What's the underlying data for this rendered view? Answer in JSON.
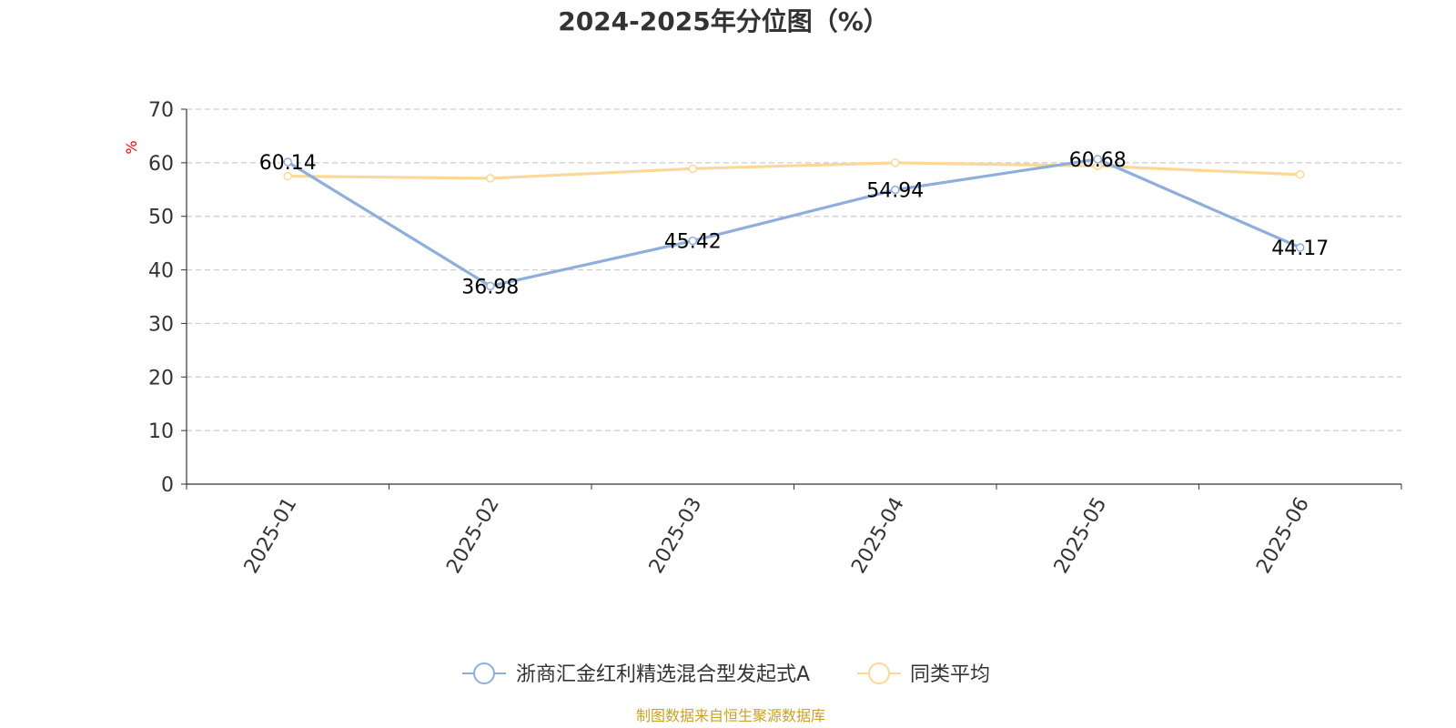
{
  "chart_data": {
    "type": "line",
    "title": "2024-2025年分位图（%）",
    "ylabel": "%",
    "xlabel": "",
    "categories": [
      "2025-01",
      "2025-02",
      "2025-03",
      "2025-04",
      "2025-05",
      "2025-06"
    ],
    "ylim": [
      0,
      70
    ],
    "yticks": [
      0,
      10,
      20,
      30,
      40,
      50,
      60,
      70
    ],
    "grid": true,
    "legend_position": "bottom",
    "series": [
      {
        "name": "浙商汇金红利精选混合型发起式A",
        "color": "#8eaedb",
        "values": [
          60.14,
          36.98,
          45.42,
          54.94,
          60.68,
          44.17
        ],
        "labels": [
          "60.14",
          "36.98",
          "45.42",
          "54.94",
          "60.68",
          "44.17"
        ]
      },
      {
        "name": "同类平均",
        "color": "#fcd898",
        "values": [
          57.5,
          57.1,
          58.9,
          60.0,
          59.4,
          57.8
        ]
      }
    ],
    "ylabel_color": "#ff0000"
  },
  "footer": {
    "source": "制图数据来自恒生聚源数据库"
  }
}
